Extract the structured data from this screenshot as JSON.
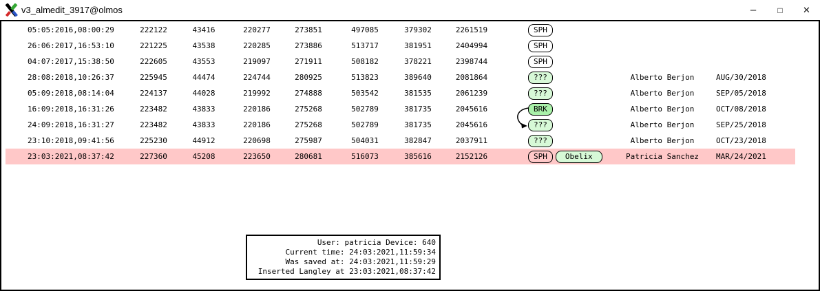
{
  "window": {
    "title": "v3_almedit_3917@olmos",
    "controls": {
      "minimize": "–",
      "maximize": "□",
      "close": "✕"
    }
  },
  "colors": {
    "highlight_row": "#ffc8c8",
    "badge_green_light": "#d7f9d7",
    "badge_green_medium": "#a9f1a9",
    "badge_plain": "#ffffff"
  },
  "table": {
    "rows": [
      {
        "timestamp": "05:05:2016,08:00:29",
        "values": [
          "222122",
          "43416",
          "220277",
          "273851",
          "497085",
          "379302",
          "2261519"
        ],
        "badges": [
          {
            "label": "SPH",
            "style": "plain",
            "name": "sph-badge"
          }
        ],
        "name": "",
        "date": "",
        "highlighted": false
      },
      {
        "timestamp": "26:06:2017,16:53:10",
        "values": [
          "221225",
          "43538",
          "220285",
          "273886",
          "513717",
          "381951",
          "2404994"
        ],
        "badges": [
          {
            "label": "SPH",
            "style": "plain",
            "name": "sph-badge"
          }
        ],
        "name": "",
        "date": "",
        "highlighted": false
      },
      {
        "timestamp": "04:07:2017,15:38:50",
        "values": [
          "222605",
          "43553",
          "219097",
          "271911",
          "508182",
          "378221",
          "2398744"
        ],
        "badges": [
          {
            "label": "SPH",
            "style": "plain",
            "name": "sph-badge"
          }
        ],
        "name": "",
        "date": "",
        "highlighted": false
      },
      {
        "timestamp": "28:08:2018,10:26:37",
        "values": [
          "225945",
          "44474",
          "224744",
          "280925",
          "513823",
          "389640",
          "2081864"
        ],
        "badges": [
          {
            "label": "???",
            "style": "light",
            "name": "unknown-badge"
          }
        ],
        "name": "Alberto Berjon",
        "date": "AUG/30/2018",
        "highlighted": false
      },
      {
        "timestamp": "05:09:2018,08:14:04",
        "values": [
          "224137",
          "44028",
          "219992",
          "274888",
          "503542",
          "381535",
          "2061239"
        ],
        "badges": [
          {
            "label": "???",
            "style": "light",
            "name": "unknown-badge"
          }
        ],
        "name": "Alberto Berjon",
        "date": "SEP/05/2018",
        "highlighted": false
      },
      {
        "timestamp": "16:09:2018,16:31:26",
        "values": [
          "223482",
          "43833",
          "220186",
          "275268",
          "502789",
          "381735",
          "2045616"
        ],
        "badges": [
          {
            "label": "BRK",
            "style": "medium",
            "name": "break-badge"
          }
        ],
        "name": "Alberto Berjon",
        "date": "OCT/08/2018",
        "highlighted": false
      },
      {
        "timestamp": "24:09:2018,16:31:27",
        "values": [
          "223482",
          "43833",
          "220186",
          "275268",
          "502789",
          "381735",
          "2045616"
        ],
        "badges": [
          {
            "label": "???",
            "style": "light",
            "name": "unknown-badge"
          }
        ],
        "name": "Alberto Berjon",
        "date": "SEP/25/2018",
        "highlighted": false
      },
      {
        "timestamp": "23:10:2018,09:41:56",
        "values": [
          "225230",
          "44912",
          "220698",
          "275987",
          "504031",
          "382847",
          "2037911"
        ],
        "badges": [
          {
            "label": "???",
            "style": "light",
            "name": "unknown-badge"
          }
        ],
        "name": "Alberto Berjon",
        "date": "OCT/23/2018",
        "highlighted": false
      },
      {
        "timestamp": "23:03:2021,08:37:42",
        "values": [
          "227360",
          "45208",
          "223650",
          "280681",
          "516073",
          "385616",
          "2152126"
        ],
        "badges": [
          {
            "label": "SPH",
            "style": "plain",
            "name": "sph-badge"
          },
          {
            "label": "Obelix",
            "style": "light wide",
            "name": "obelix-badge"
          }
        ],
        "name": "Patricia Sanchez",
        "date": "MAR/24/2021",
        "highlighted": true
      }
    ],
    "connector": {
      "from_badge": "BRK",
      "to_badge": "???",
      "from_row": 5,
      "to_row": 6
    }
  },
  "info_box": {
    "lines": [
      "User: patricia Device: 640",
      "Current time: 24:03:2021,11:59:34",
      "Was saved at: 24:03:2021,11:59:29",
      "Inserted Langley at 23:03:2021,08:37:42"
    ]
  }
}
